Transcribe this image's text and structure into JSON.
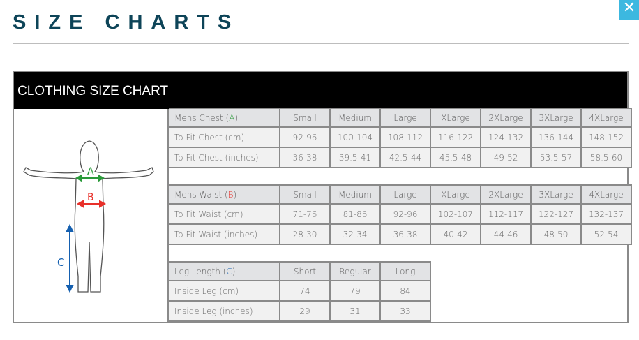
{
  "page_title": "SIZE CHARTS",
  "close_icon": "close-icon",
  "chart_title": "CLOTHING SIZE CHART",
  "figure": {
    "label_a": "A",
    "label_b": "B",
    "label_c": "C",
    "colors": {
      "a": "#2a9a3a",
      "b": "#e8302a",
      "c": "#1560b0"
    }
  },
  "tables": [
    {
      "header": [
        "Mens Chest (",
        "A",
        ")"
      ],
      "columns": [
        "Small",
        "Medium",
        "Large",
        "XLarge",
        "2XLarge",
        "3XLarge",
        "4XLarge"
      ],
      "rows": [
        {
          "label": "To Fit Chest (cm)",
          "values": [
            "92-96",
            "100-104",
            "108-112",
            "116-122",
            "124-132",
            "136-144",
            "148-152"
          ]
        },
        {
          "label": "To Fit Chest (inches)",
          "values": [
            "36-38",
            "39.5-41",
            "42.5-44",
            "45.5-48",
            "49-52",
            "53.5-57",
            "58.5-60"
          ]
        }
      ]
    },
    {
      "header": [
        "Mens Waist (",
        "B",
        ")"
      ],
      "columns": [
        "Small",
        "Medium",
        "Large",
        "XLarge",
        "2XLarge",
        "3XLarge",
        "4XLarge"
      ],
      "rows": [
        {
          "label": "To Fit Waist (cm)",
          "values": [
            "71-76",
            "81-86",
            "92-96",
            "102-107",
            "112-117",
            "122-127",
            "132-137"
          ]
        },
        {
          "label": "To Fit Waist (inches)",
          "values": [
            "28-30",
            "32-34",
            "36-38",
            "40-42",
            "44-46",
            "48-50",
            "52-54"
          ]
        }
      ]
    },
    {
      "header": [
        "Leg Length (",
        "C",
        ")"
      ],
      "columns": [
        "Short",
        "Regular",
        "Long"
      ],
      "rows": [
        {
          "label": "Inside Leg (cm)",
          "values": [
            "74",
            "79",
            "84"
          ]
        },
        {
          "label": "Inside Leg (inches)",
          "values": [
            "29",
            "31",
            "33"
          ]
        }
      ]
    }
  ]
}
